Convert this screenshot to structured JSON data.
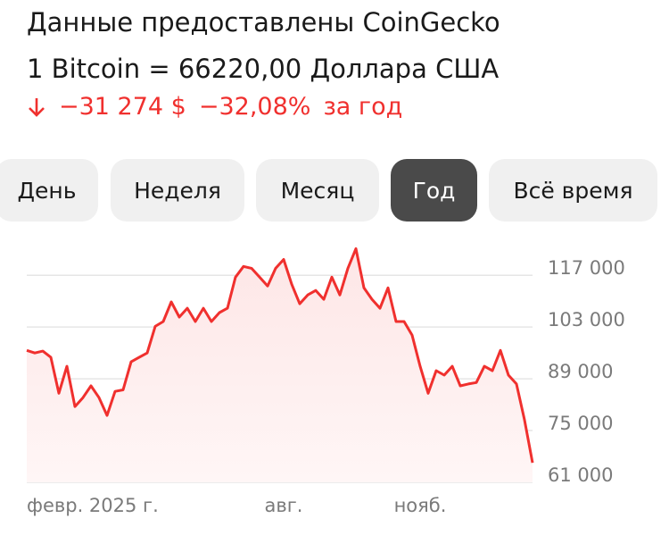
{
  "header": {
    "source": "Данные предоставлены CoinGecko",
    "rate": "1 Bitcoin = 66220,00 Доллара США",
    "change_abs": "−31 274 $",
    "change_pct": "−32,08%",
    "period": "за год"
  },
  "tabs": [
    "День",
    "Неделя",
    "Месяц",
    "Год",
    "Всё время"
  ],
  "selected_tab": 3,
  "chart_data": {
    "type": "line",
    "color": "#f0302e",
    "categories": [
      "февр. 2025 г.",
      null,
      null,
      null,
      null,
      null,
      null,
      null,
      null,
      null,
      null,
      null,
      null,
      null,
      null,
      null,
      null,
      null,
      null,
      null,
      null,
      null,
      null,
      null,
      null,
      null,
      null,
      null,
      null,
      null,
      null,
      null,
      "авг.",
      null,
      null,
      null,
      null,
      null,
      null,
      null,
      null,
      null,
      null,
      null,
      null,
      null,
      null,
      null,
      null,
      "нояб.",
      null,
      null,
      null,
      null,
      null,
      null,
      null,
      null,
      null,
      null,
      null,
      null,
      null,
      null
    ],
    "values": [
      96700,
      96000,
      96500,
      94800,
      85100,
      92400,
      81500,
      83900,
      87100,
      83900,
      79100,
      85600,
      86000,
      93600,
      94800,
      96000,
      103200,
      104500,
      109800,
      105700,
      108100,
      104500,
      108100,
      104500,
      106900,
      108100,
      116500,
      119400,
      118900,
      116500,
      114100,
      118900,
      121300,
      114600,
      109300,
      111700,
      112900,
      110500,
      116500,
      111700,
      118900,
      124200,
      113600,
      110500,
      108100,
      113600,
      104500,
      104500,
      100800,
      92400,
      85100,
      91200,
      90000,
      92400,
      87100,
      87600,
      88000,
      92400,
      91200,
      96700,
      90000,
      87600,
      77900,
      66300
    ],
    "ylim": [
      61000,
      126000
    ],
    "yticks": [
      {
        "value": 61000,
        "label": "61 000"
      },
      {
        "value": 75000,
        "label": "75 000"
      },
      {
        "value": 89000,
        "label": "89 000"
      },
      {
        "value": 103000,
        "label": "103 000"
      },
      {
        "value": 117000,
        "label": "117 000"
      }
    ],
    "grid": true
  }
}
